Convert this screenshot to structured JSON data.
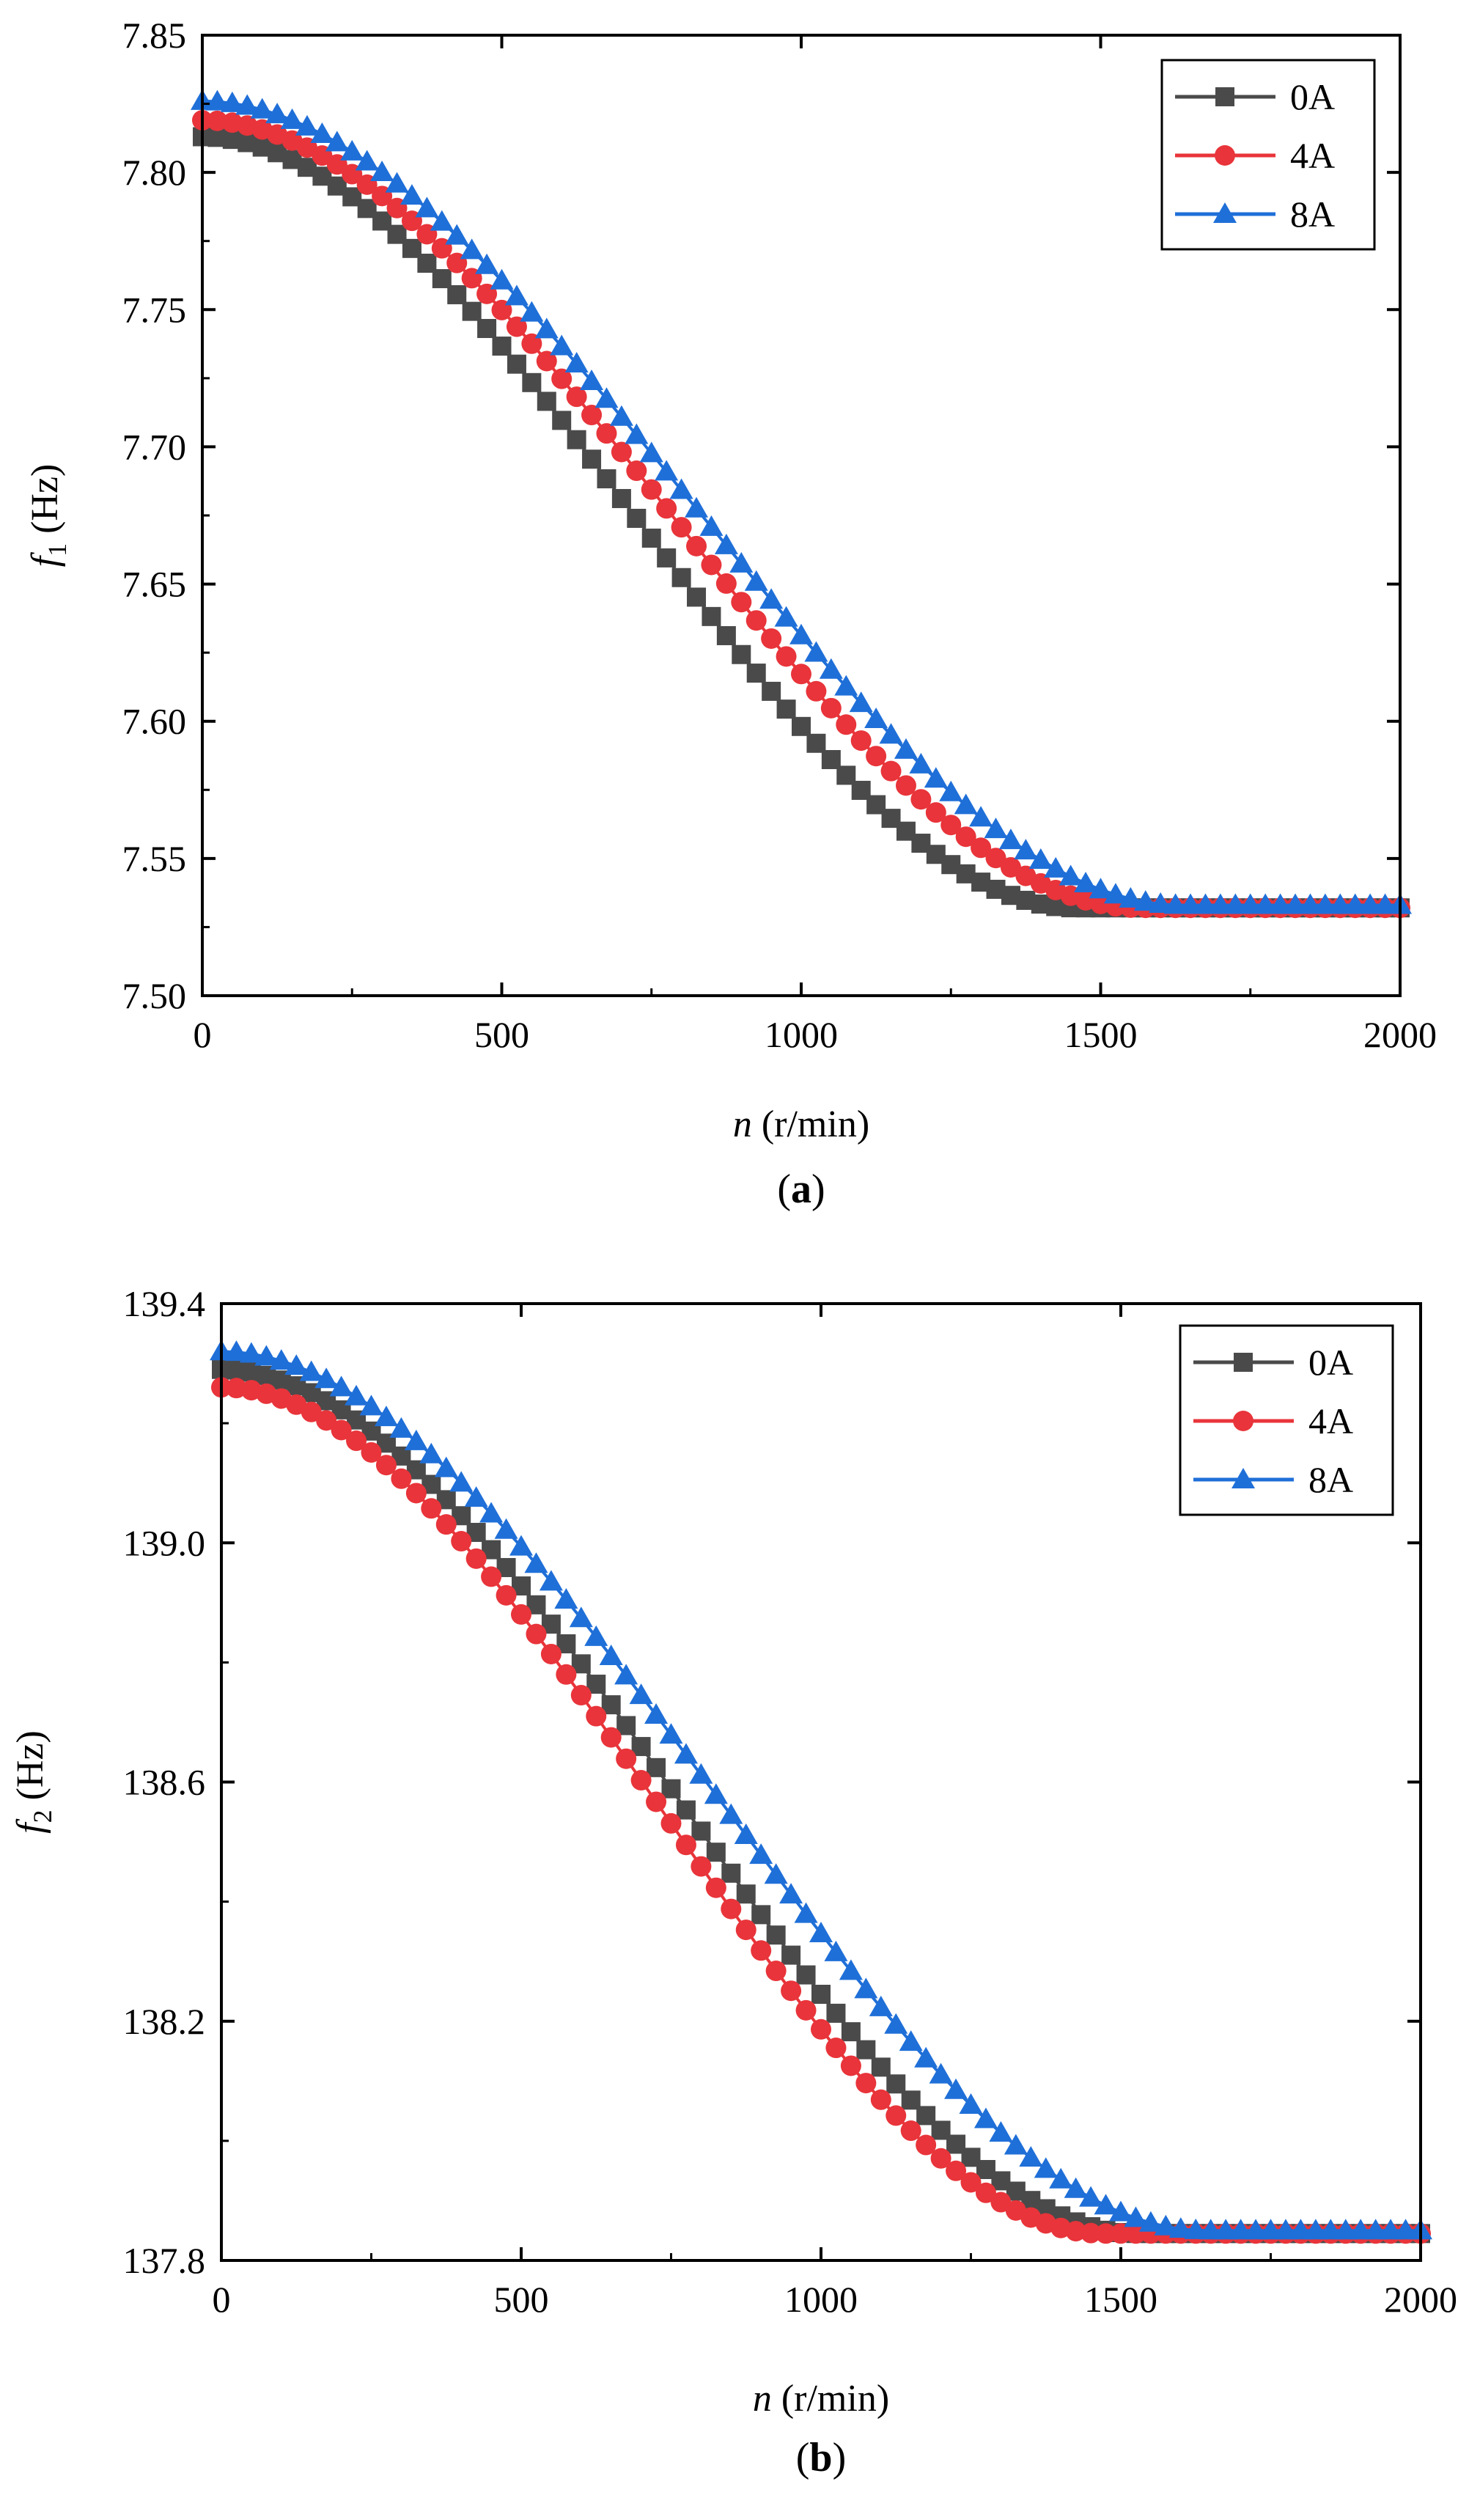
{
  "colors": {
    "0A": "#4a4a4a",
    "4A": "#e8343a",
    "8A": "#1f6fd8"
  },
  "chart_data": [
    {
      "type": "line",
      "panel_label": "a",
      "title": "",
      "xlabel": {
        "var": "n",
        "unit": " (r/min)"
      },
      "ylabel": {
        "var": "f",
        "sub": "1",
        "unit": " (Hz)"
      },
      "xlim": [
        0,
        2000
      ],
      "ylim": [
        7.5,
        7.85
      ],
      "xticks": [
        0,
        500,
        1000,
        1500,
        2000
      ],
      "xtick_labels": [
        "0",
        "500",
        "1000",
        "1500",
        "2000"
      ],
      "yticks": [
        7.5,
        7.55,
        7.6,
        7.65,
        7.7,
        7.75,
        7.8,
        7.85
      ],
      "ytick_labels": [
        "7.50",
        "7.55",
        "7.60",
        "7.65",
        "7.70",
        "7.75",
        "7.80",
        "7.85"
      ],
      "legend_position": "top-right",
      "series": [
        {
          "name": "0A",
          "marker": "square",
          "start": 7.813,
          "end": 7.532,
          "n_end": 1460
        },
        {
          "name": "4A",
          "marker": "circle",
          "start": 7.819,
          "end": 7.532,
          "n_end": 1565
        },
        {
          "name": "8A",
          "marker": "triangle",
          "start": 7.826,
          "end": 7.533,
          "n_end": 1635
        }
      ]
    },
    {
      "type": "line",
      "panel_label": "b",
      "title": "",
      "xlabel": {
        "var": "n",
        "unit": " (r/min)"
      },
      "ylabel": {
        "var": "f",
        "sub": "2",
        "unit": " (Hz)"
      },
      "xlim": [
        0,
        2000
      ],
      "ylim": [
        137.8,
        139.4
      ],
      "xticks": [
        0,
        500,
        1000,
        1500,
        2000
      ],
      "xtick_labels": [
        "0",
        "500",
        "1000",
        "1500",
        "2000"
      ],
      "yticks": [
        137.8,
        138.2,
        138.6,
        139.0,
        139.4
      ],
      "ytick_labels": [
        "137.8",
        "138.2",
        "138.6",
        "139.0",
        "139.4"
      ],
      "legend_position": "top-right",
      "series": [
        {
          "name": "0A",
          "marker": "square",
          "start": 139.29,
          "end": 137.845,
          "n_end": 1530
        },
        {
          "name": "4A",
          "marker": "circle",
          "start": 139.26,
          "end": 137.845,
          "n_end": 1470
        },
        {
          "name": "8A",
          "marker": "triangle",
          "start": 139.32,
          "end": 137.85,
          "n_end": 1640
        }
      ]
    }
  ]
}
